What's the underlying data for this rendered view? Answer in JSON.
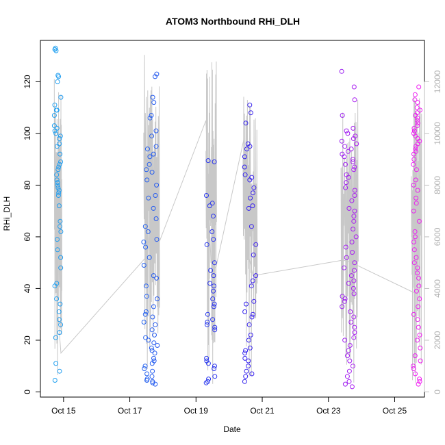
{
  "chart_data": {
    "type": "scatter",
    "title": "ATOM3 Northbound RHi_DLH",
    "xlabel": "Date",
    "ylabel": "RHi_DLH",
    "x_tick_labels": [
      "Oct 15",
      "Oct 17",
      "Oct 19",
      "Oct 21",
      "Oct 23",
      "Oct 25"
    ],
    "x_ticks_day": [
      15,
      17,
      19,
      21,
      23,
      25
    ],
    "xlim_day": [
      14.3,
      25.9
    ],
    "ylim": [
      -2,
      136
    ],
    "yticks": [
      0,
      20,
      40,
      60,
      80,
      100,
      120
    ],
    "y2lim": [
      -200,
      13600
    ],
    "y2ticks": [
      0,
      2000,
      4000,
      6000,
      8000,
      10000,
      12000
    ],
    "y2_color": "#bebebe",
    "color_gradient": [
      "#1fa0f0",
      "#2a22ee",
      "#f11cf1"
    ],
    "series": [
      {
        "role": "RHi_DLH points, colored by time",
        "groups": [
          {
            "day_range": [
              14.72,
              14.92
            ],
            "values": [
              133,
              132.5,
              132,
              122,
              122.5,
              120,
              114,
              111,
              109,
              109,
              107,
              103,
              102,
              101,
              100,
              99,
              98,
              96,
              95,
              92,
              89,
              88,
              87,
              86,
              84,
              82,
              81,
              80,
              79,
              78,
              77,
              76,
              72,
              66,
              64,
              62,
              59,
              55,
              52,
              48,
              42,
              41,
              36,
              34,
              31,
              28,
              26,
              23,
              21,
              11,
              8,
              4.5
            ]
          },
          {
            "day_range": [
              17.42,
              17.85
            ],
            "values": [
              123,
              122,
              114,
              112,
              107,
              106,
              101,
              99,
              95,
              94,
              92,
              91,
              88,
              86,
              85,
              82,
              80,
              76,
              75,
              71,
              67,
              64,
              62,
              59,
              58,
              56,
              52,
              49,
              45,
              44,
              41,
              37,
              36,
              33,
              31,
              30,
              29,
              27,
              26,
              24,
              22,
              21,
              20,
              19,
              18,
              17,
              16,
              15,
              13,
              12,
              11,
              10,
              9,
              8,
              7,
              6,
              5,
              4.5,
              4,
              3.5,
              3
            ]
          },
          {
            "day_range": [
              19.3,
              19.58
            ],
            "values": [
              89.5,
              89,
              76,
              73,
              72,
              68,
              62,
              59,
              57,
              50,
              47,
              45,
              42,
              41,
              39,
              36,
              34,
              33,
              30,
              28,
              27,
              26,
              25,
              24,
              13,
              12,
              11,
              10,
              9,
              6,
              5,
              4,
              3.5
            ]
          },
          {
            "day_range": [
              20.45,
              20.82
            ],
            "values": [
              111,
              108,
              104,
              96,
              95,
              94,
              91,
              87,
              84,
              83,
              82,
              79,
              77,
              75,
              72,
              71,
              64,
              57,
              53,
              45,
              43,
              41,
              35,
              34,
              31,
              30,
              29,
              26,
              22,
              20,
              17,
              16,
              15,
              13,
              12,
              10,
              8,
              7,
              6,
              4
            ]
          },
          {
            "day_range": [
              23.4,
              23.85
            ],
            "values": [
              124,
              118,
              113,
              107,
              102,
              101,
              100,
              99,
              98,
              97,
              96,
              95,
              94,
              93,
              92,
              91,
              90,
              89,
              88,
              87,
              86,
              84,
              83,
              81,
              79,
              78,
              76,
              74,
              71,
              70,
              68,
              66,
              63,
              60,
              58,
              56,
              54,
              52,
              50,
              48,
              47,
              45,
              43,
              42,
              40,
              38,
              37,
              36,
              35,
              33,
              31,
              29,
              27,
              25,
              23,
              21,
              20,
              18,
              16,
              14,
              12,
              10,
              8,
              6,
              4,
              3,
              2
            ]
          },
          {
            "day_range": [
              25.55,
              25.78
            ],
            "values": [
              118,
              115,
              113,
              112,
              110,
              109,
              108,
              107,
              106,
              105,
              104,
              103,
              102,
              101,
              100,
              99,
              98,
              97,
              96,
              95,
              94,
              93,
              92,
              90,
              88,
              86,
              82,
              80,
              78,
              75,
              73,
              70,
              66,
              62,
              60,
              58,
              55,
              52,
              50,
              48,
              46,
              44,
              41,
              39,
              36,
              33,
              30,
              28,
              25,
              22,
              20,
              17,
              14,
              12,
              10,
              9,
              7,
              5,
              4,
              3
            ]
          }
        ]
      },
      {
        "role": "secondary axis grey line",
        "color": "#c8c8c8",
        "path": [
          [
            14.8,
            3500
          ],
          [
            14.92,
            1500
          ],
          [
            17.55,
            5300
          ],
          [
            17.7,
            8000
          ],
          [
            17.8,
            5500
          ],
          [
            19.3,
            10500
          ],
          [
            19.45,
            5000
          ],
          [
            19.6,
            4800
          ],
          [
            20.45,
            9800
          ],
          [
            20.6,
            5200
          ],
          [
            20.72,
            4500
          ],
          [
            23.45,
            5100
          ],
          [
            23.7,
            5000
          ],
          [
            25.65,
            3800
          ]
        ],
        "spike_clusters": [
          {
            "day_range": [
              14.72,
              14.95
            ],
            "low": 300,
            "high": 12100
          },
          {
            "day_range": [
              17.42,
              17.9
            ],
            "low": 500,
            "high": 13300
          },
          {
            "day_range": [
              19.3,
              19.62
            ],
            "low": 300,
            "high": 12800
          },
          {
            "day_range": [
              20.42,
              20.85
            ],
            "low": 400,
            "high": 11500
          },
          {
            "day_range": [
              23.38,
              23.9
            ],
            "low": 200,
            "high": 11600
          },
          {
            "day_range": [
              25.5,
              25.82
            ],
            "low": 300,
            "high": 11600
          }
        ]
      }
    ]
  }
}
